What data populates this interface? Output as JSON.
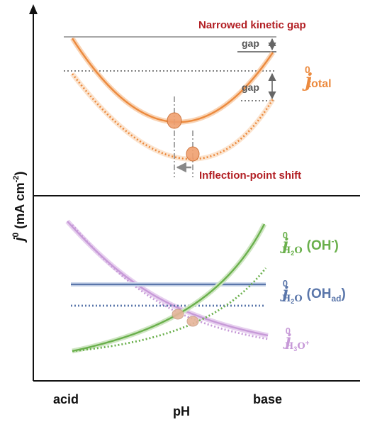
{
  "chart_data": [
    {
      "type": "line",
      "panel": "top",
      "x_kind": "qualitative",
      "annotations": {
        "narrowed": "Narrowed kinetic gap",
        "gap_upper": "gap",
        "gap_lower": "gap",
        "inflection": "Inflection-point shift"
      },
      "series_label": {
        "j": "j",
        "sup": "0",
        "sub": "total"
      },
      "series": [
        {
          "style": "solid",
          "color": "#ec8a3e",
          "minimum": [
            0.43,
            0.36
          ],
          "left_end": [
            0.05,
            0.92
          ],
          "right_end": [
            0.95,
            0.92
          ]
        },
        {
          "style": "dotted",
          "color": "#ec8a3e",
          "minimum": [
            0.52,
            0.15
          ],
          "left_end": [
            0.05,
            0.7
          ],
          "right_end": [
            0.95,
            0.73
          ]
        }
      ]
    },
    {
      "type": "line",
      "panel": "bottom",
      "x_kind": "qualitative",
      "series_labels": {
        "oh": {
          "j": "j",
          "sup": "0",
          "sub1": "H",
          "sub2": "2",
          "sub3": "O",
          "tail": "(OH",
          "tail_sup": "-",
          "tail_end": ")"
        },
        "ohad": {
          "j": "j",
          "sup": "0",
          "sub1": "H",
          "sub2": "2",
          "sub3": "O",
          "tail": "(OH",
          "tail_sub": "ad",
          "tail_end": ")"
        },
        "h3o": {
          "j": "j",
          "sup": "0",
          "sub1": "H",
          "sub2": "3",
          "sub3": "O",
          "sub_sup": "+"
        }
      },
      "series": [
        {
          "key": "oh",
          "style": "solid",
          "color": "#6ab04c",
          "trend": "rising"
        },
        {
          "key": "oh",
          "style": "dotted",
          "color": "#6ab04c",
          "trend": "rising"
        },
        {
          "key": "ohad",
          "style": "solid",
          "color": "#5a76aa",
          "trend": "flat"
        },
        {
          "key": "ohad",
          "style": "dotted",
          "color": "#5a76aa",
          "trend": "flat"
        },
        {
          "key": "h3o",
          "style": "solid",
          "color": "#c79ad8",
          "trend": "falling"
        },
        {
          "key": "h3o",
          "style": "dotted",
          "color": "#c79ad8",
          "trend": "falling"
        }
      ]
    }
  ],
  "axes": {
    "y_label": {
      "j": "j",
      "sup": "0",
      "units": " (mA cm",
      "units_sup": "-2",
      "close": ")"
    },
    "x_label": "pH",
    "x_ticks": [
      "acid",
      "base"
    ]
  }
}
